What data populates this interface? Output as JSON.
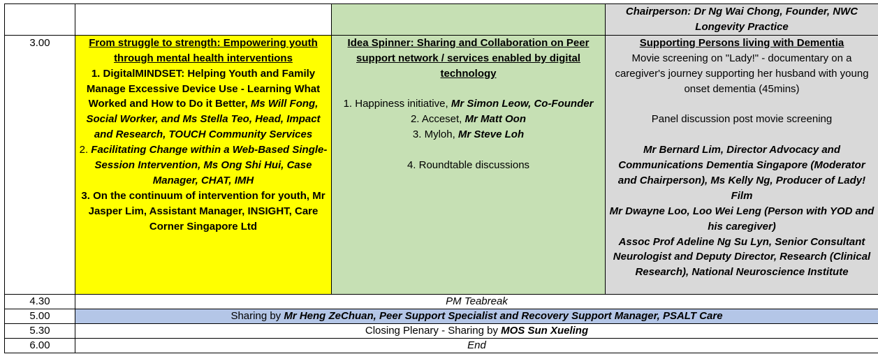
{
  "header_row": {
    "chair": "Chairperson: Dr Ng Wai Chong, Founder, NWC Longevity Practice"
  },
  "main_row": {
    "time": "3.00",
    "col1": {
      "title": "From struggle to strength: Empowering youth through mental health interventions",
      "item1_b": "1. DigitalMINDSET: Helping Youth and Family Manage Excessive Device Use - Learning What Worked and How to Do it Better,",
      "item1_bi": "Ms Will Fong, Social Worker, and Ms Stella Teo, Head, Impact and Research, TOUCH Community Services",
      "item2_n": "2.",
      "item2_bi": "Facilitating Change within a Web-Based Single-Session Intervention, Ms Ong Shi Hui, Case Manager, CHAT, IMH",
      "item3_b": "3. On the continuum of intervention for youth, Mr Jasper Lim, Assistant Manager, INSIGHT, Care Corner Singapore Ltd"
    },
    "col2": {
      "title": "Idea Spinner: Sharing and Collaboration on Peer support network / services enabled by digital technology",
      "item1_n": "1. Happiness initiative,",
      "item1_bi": "Mr Simon Leow, Co-Founder",
      "item2_n": "2. Acceset,",
      "item2_bi": "Mr Matt Oon",
      "item3_n": "3. Myloh,",
      "item3_bi": "Mr Steve Loh",
      "item4": "4. Roundtable discussions"
    },
    "col3": {
      "title": "Supporting Persons living with Dementia",
      "desc": "Movie screening on \"Lady!\" - documentary on a caregiver's journey supporting her husband with young onset dementia (45mins)",
      "panel": "Panel discussion post movie screening",
      "p1": "Mr Bernard Lim, Director Advocacy and Communications Dementia Singapore (Moderator and Chairperson), Ms Kelly Ng, Producer of Lady! Film",
      "p2": "Mr Dwayne Loo, Loo Wei Leng (Person with YOD and his caregiver)",
      "p3": "Assoc Prof Adeline Ng Su Lyn, Senior Consultant Neurologist and Deputy Director, Research (Clinical Research), National Neuroscience Institute"
    }
  },
  "rows": {
    "teabreak": {
      "time": "4.30",
      "text": "PM Teabreak"
    },
    "sharing": {
      "time": "5.00",
      "prefix": "Sharing by ",
      "speaker": "Mr Heng ZeChuan, Peer Support Specialist and Recovery Support Manager, PSALT Care"
    },
    "closing": {
      "time": "5.30",
      "prefix": "Closing Plenary - Sharing by ",
      "speaker": "MOS Sun Xueling"
    },
    "end": {
      "time": "6.00",
      "text": "End"
    }
  },
  "colors": {
    "yellow": "#ffff00",
    "green": "#c6e0b4",
    "grey": "#d9d9d9",
    "blue": "#b4c6e7"
  }
}
